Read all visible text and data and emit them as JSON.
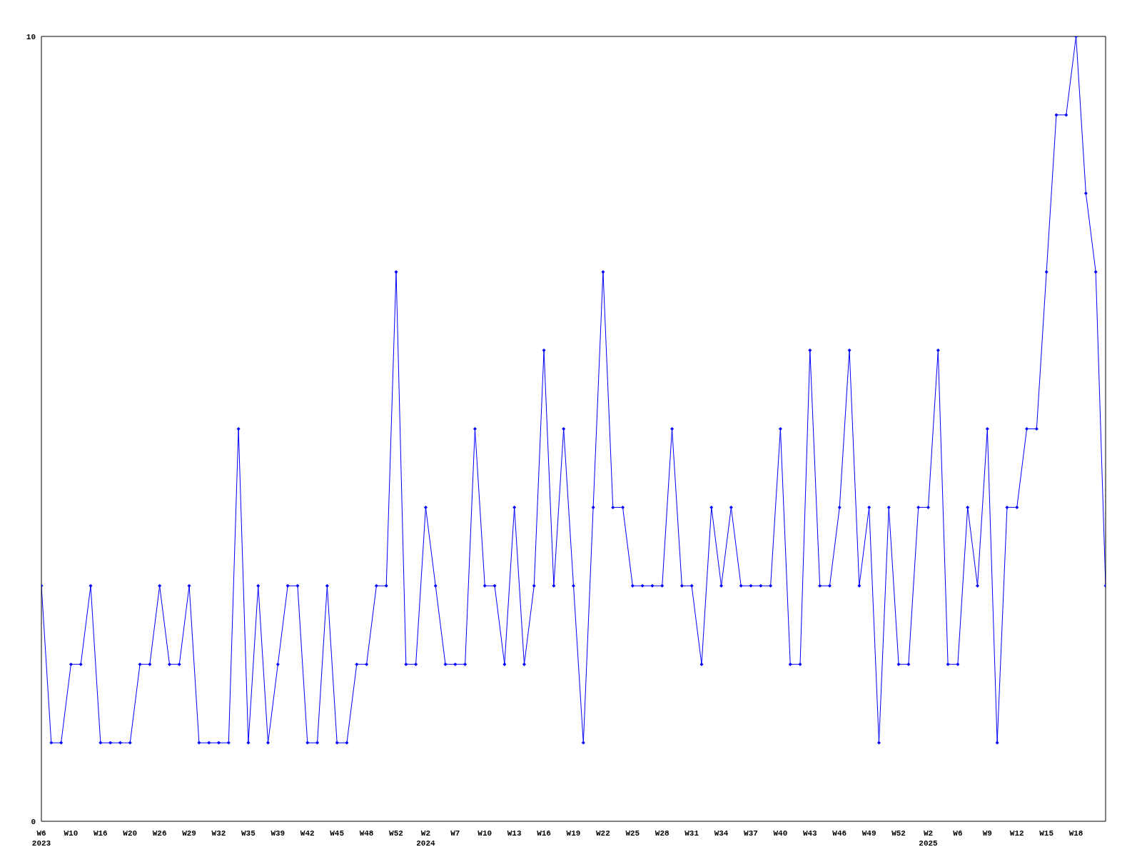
{
  "chart_data": {
    "type": "line",
    "categories": [
      "W6\n2023",
      null,
      null,
      "W10",
      null,
      null,
      "W16",
      null,
      null,
      "W20",
      null,
      null,
      "W26",
      null,
      null,
      "W29",
      null,
      null,
      "W32",
      null,
      null,
      "W35",
      null,
      null,
      "W39",
      null,
      null,
      "W42",
      null,
      null,
      "W45",
      null,
      null,
      "W48",
      null,
      null,
      "W52",
      null,
      null,
      "W2\n2024",
      null,
      null,
      "W7",
      null,
      null,
      "W10",
      null,
      null,
      "W13",
      null,
      null,
      "W16",
      null,
      null,
      "W19",
      null,
      null,
      "W22",
      null,
      null,
      "W25",
      null,
      null,
      "W28",
      null,
      null,
      "W31",
      null,
      null,
      "W34",
      null,
      null,
      "W37",
      null,
      null,
      "W40",
      null,
      null,
      "W43",
      null,
      null,
      "W46",
      null,
      null,
      "W49",
      null,
      null,
      "W52",
      null,
      null,
      "W2\n2025",
      null,
      null,
      "W6",
      null,
      null,
      "W9",
      null,
      null,
      "W12",
      null,
      null,
      "W15",
      null,
      null,
      "W18",
      null,
      null,
      null
    ],
    "series": [
      {
        "color": "#0000ff",
        "values": [
          3,
          1,
          1,
          2,
          2,
          3,
          1,
          1,
          1,
          1,
          2,
          2,
          3,
          2,
          2,
          3,
          1,
          1,
          1,
          1,
          5,
          1,
          3,
          1,
          2,
          3,
          3,
          1,
          1,
          3,
          1,
          1,
          2,
          2,
          3,
          3,
          7,
          2,
          2,
          4,
          3,
          2,
          2,
          2,
          5,
          3,
          3,
          2,
          4,
          2,
          3,
          6,
          3,
          5,
          3,
          1,
          4,
          7,
          4,
          4,
          3,
          3,
          3,
          3,
          5,
          3,
          3,
          2,
          4,
          3,
          4,
          3,
          3,
          3,
          3,
          5,
          2,
          2,
          6,
          3,
          3,
          4,
          6,
          3,
          4,
          1,
          4,
          2,
          2,
          4,
          4,
          6,
          2,
          2,
          4,
          3,
          5,
          1,
          4,
          4,
          5,
          5,
          7,
          9,
          9,
          10,
          8,
          7,
          3
        ]
      }
    ],
    "ylim": [
      0,
      10
    ],
    "yticks": [
      0,
      10
    ],
    "marker": "diamond",
    "line_style": "solid"
  }
}
